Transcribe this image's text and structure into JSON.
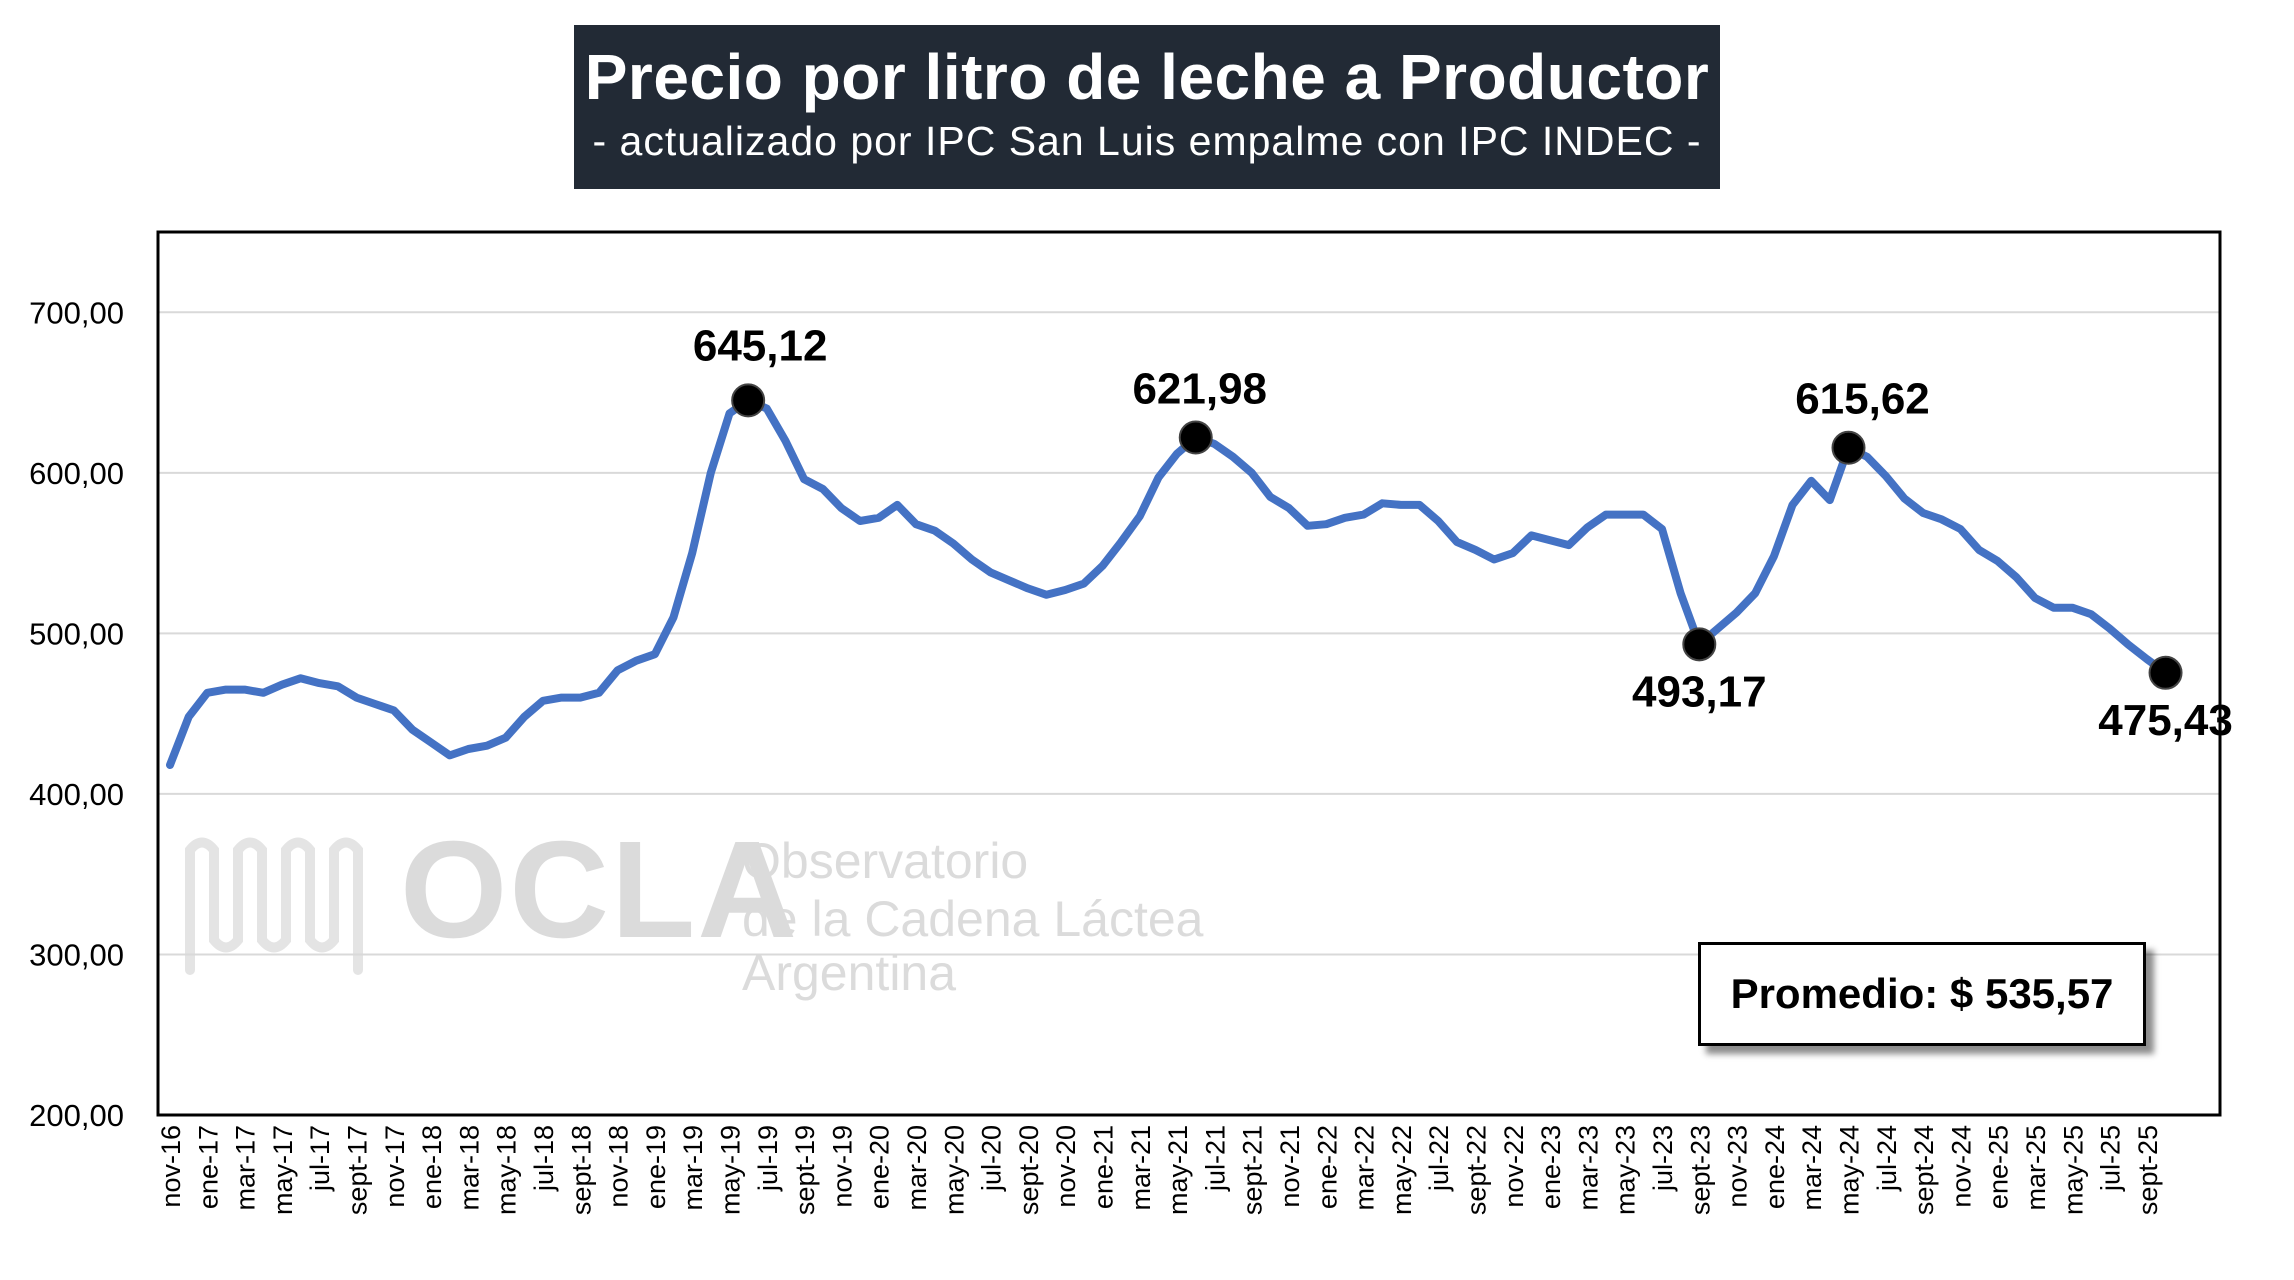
{
  "title": "Precio por litro de leche a Productor",
  "subtitle": "- actualizado por IPC San Luis empalme con IPC INDEC -",
  "average_label": "Promedio: $ 535,57",
  "watermark": {
    "logo": "OCLA",
    "line1": "Observatorio",
    "line2": "de la Cadena Láctea",
    "line3": "Argentina"
  },
  "colors": {
    "series": "#4472c4",
    "title_bg": "#222a35",
    "marker": "#000000"
  },
  "chart_data": {
    "type": "line",
    "title": "Precio por litro de leche a Productor",
    "subtitle": "- actualizado por IPC San Luis empalme con IPC INDEC -",
    "ylim": [
      200,
      750
    ],
    "yticks": [
      200,
      300,
      400,
      500,
      600,
      700
    ],
    "ytick_labels": [
      "200,00",
      "300,00",
      "400,00",
      "500,00",
      "600,00",
      "700,00"
    ],
    "grid": "horizontal",
    "x_labels_shown": [
      "nov-16",
      "ene-17",
      "mar-17",
      "may-17",
      "jul-17",
      "sept-17",
      "nov-17",
      "ene-18",
      "mar-18",
      "may-18",
      "jul-18",
      "sept-18",
      "nov-18",
      "ene-19",
      "mar-19",
      "may-19",
      "jul-19",
      "sept-19",
      "nov-19",
      "ene-20",
      "mar-20",
      "may-20",
      "jul-20",
      "sept-20",
      "nov-20",
      "ene-21",
      "mar-21",
      "may-21",
      "jul-21",
      "sept-21",
      "nov-21",
      "ene-22",
      "mar-22",
      "may-22",
      "jul-22",
      "sept-22",
      "nov-22",
      "ene-23",
      "mar-23",
      "may-23",
      "jul-23",
      "sept-23",
      "nov-23",
      "ene-24",
      "mar-24",
      "may-24",
      "jul-24",
      "sept-24",
      "nov-24",
      "ene-25",
      "mar-25",
      "may-25",
      "jul-25",
      "sept-25"
    ],
    "series": [
      {
        "name": "",
        "values": [
          418,
          448,
          463,
          465,
          465,
          463,
          468,
          472,
          469,
          467,
          460,
          456,
          452,
          440,
          432,
          424,
          428,
          430,
          435,
          448,
          458,
          460,
          460,
          463,
          477,
          483,
          487,
          510,
          550,
          600,
          637,
          645.12,
          640,
          620,
          596,
          590,
          578,
          570,
          572,
          580,
          568,
          564,
          556,
          546,
          538,
          533,
          528,
          524,
          527,
          531,
          542,
          557,
          573,
          597,
          612,
          621.98,
          618,
          610,
          600,
          585,
          578,
          567,
          568,
          572,
          574,
          581,
          580,
          580,
          570,
          557,
          552,
          546,
          550,
          561,
          558,
          555,
          566,
          574,
          574,
          574,
          565,
          525,
          493.17,
          503,
          513,
          525,
          548,
          580,
          595,
          583,
          615.62,
          610,
          598,
          584,
          575,
          571,
          565,
          552,
          545,
          535,
          522,
          516,
          516,
          512,
          503,
          493,
          484,
          475.43
        ]
      }
    ],
    "annotations": [
      {
        "label": "645,12",
        "value": 645.12,
        "x_label": "may-19"
      },
      {
        "label": "621,98",
        "value": 621.98,
        "x_label": "may-21"
      },
      {
        "label": "493,17",
        "value": 493.17,
        "x_label": "sept-23"
      },
      {
        "label": "615,62",
        "value": 615.62,
        "x_label": "may-24"
      },
      {
        "label": "475,43",
        "value": 475.43,
        "x_label": "oct-25"
      }
    ],
    "average": 535.57
  }
}
